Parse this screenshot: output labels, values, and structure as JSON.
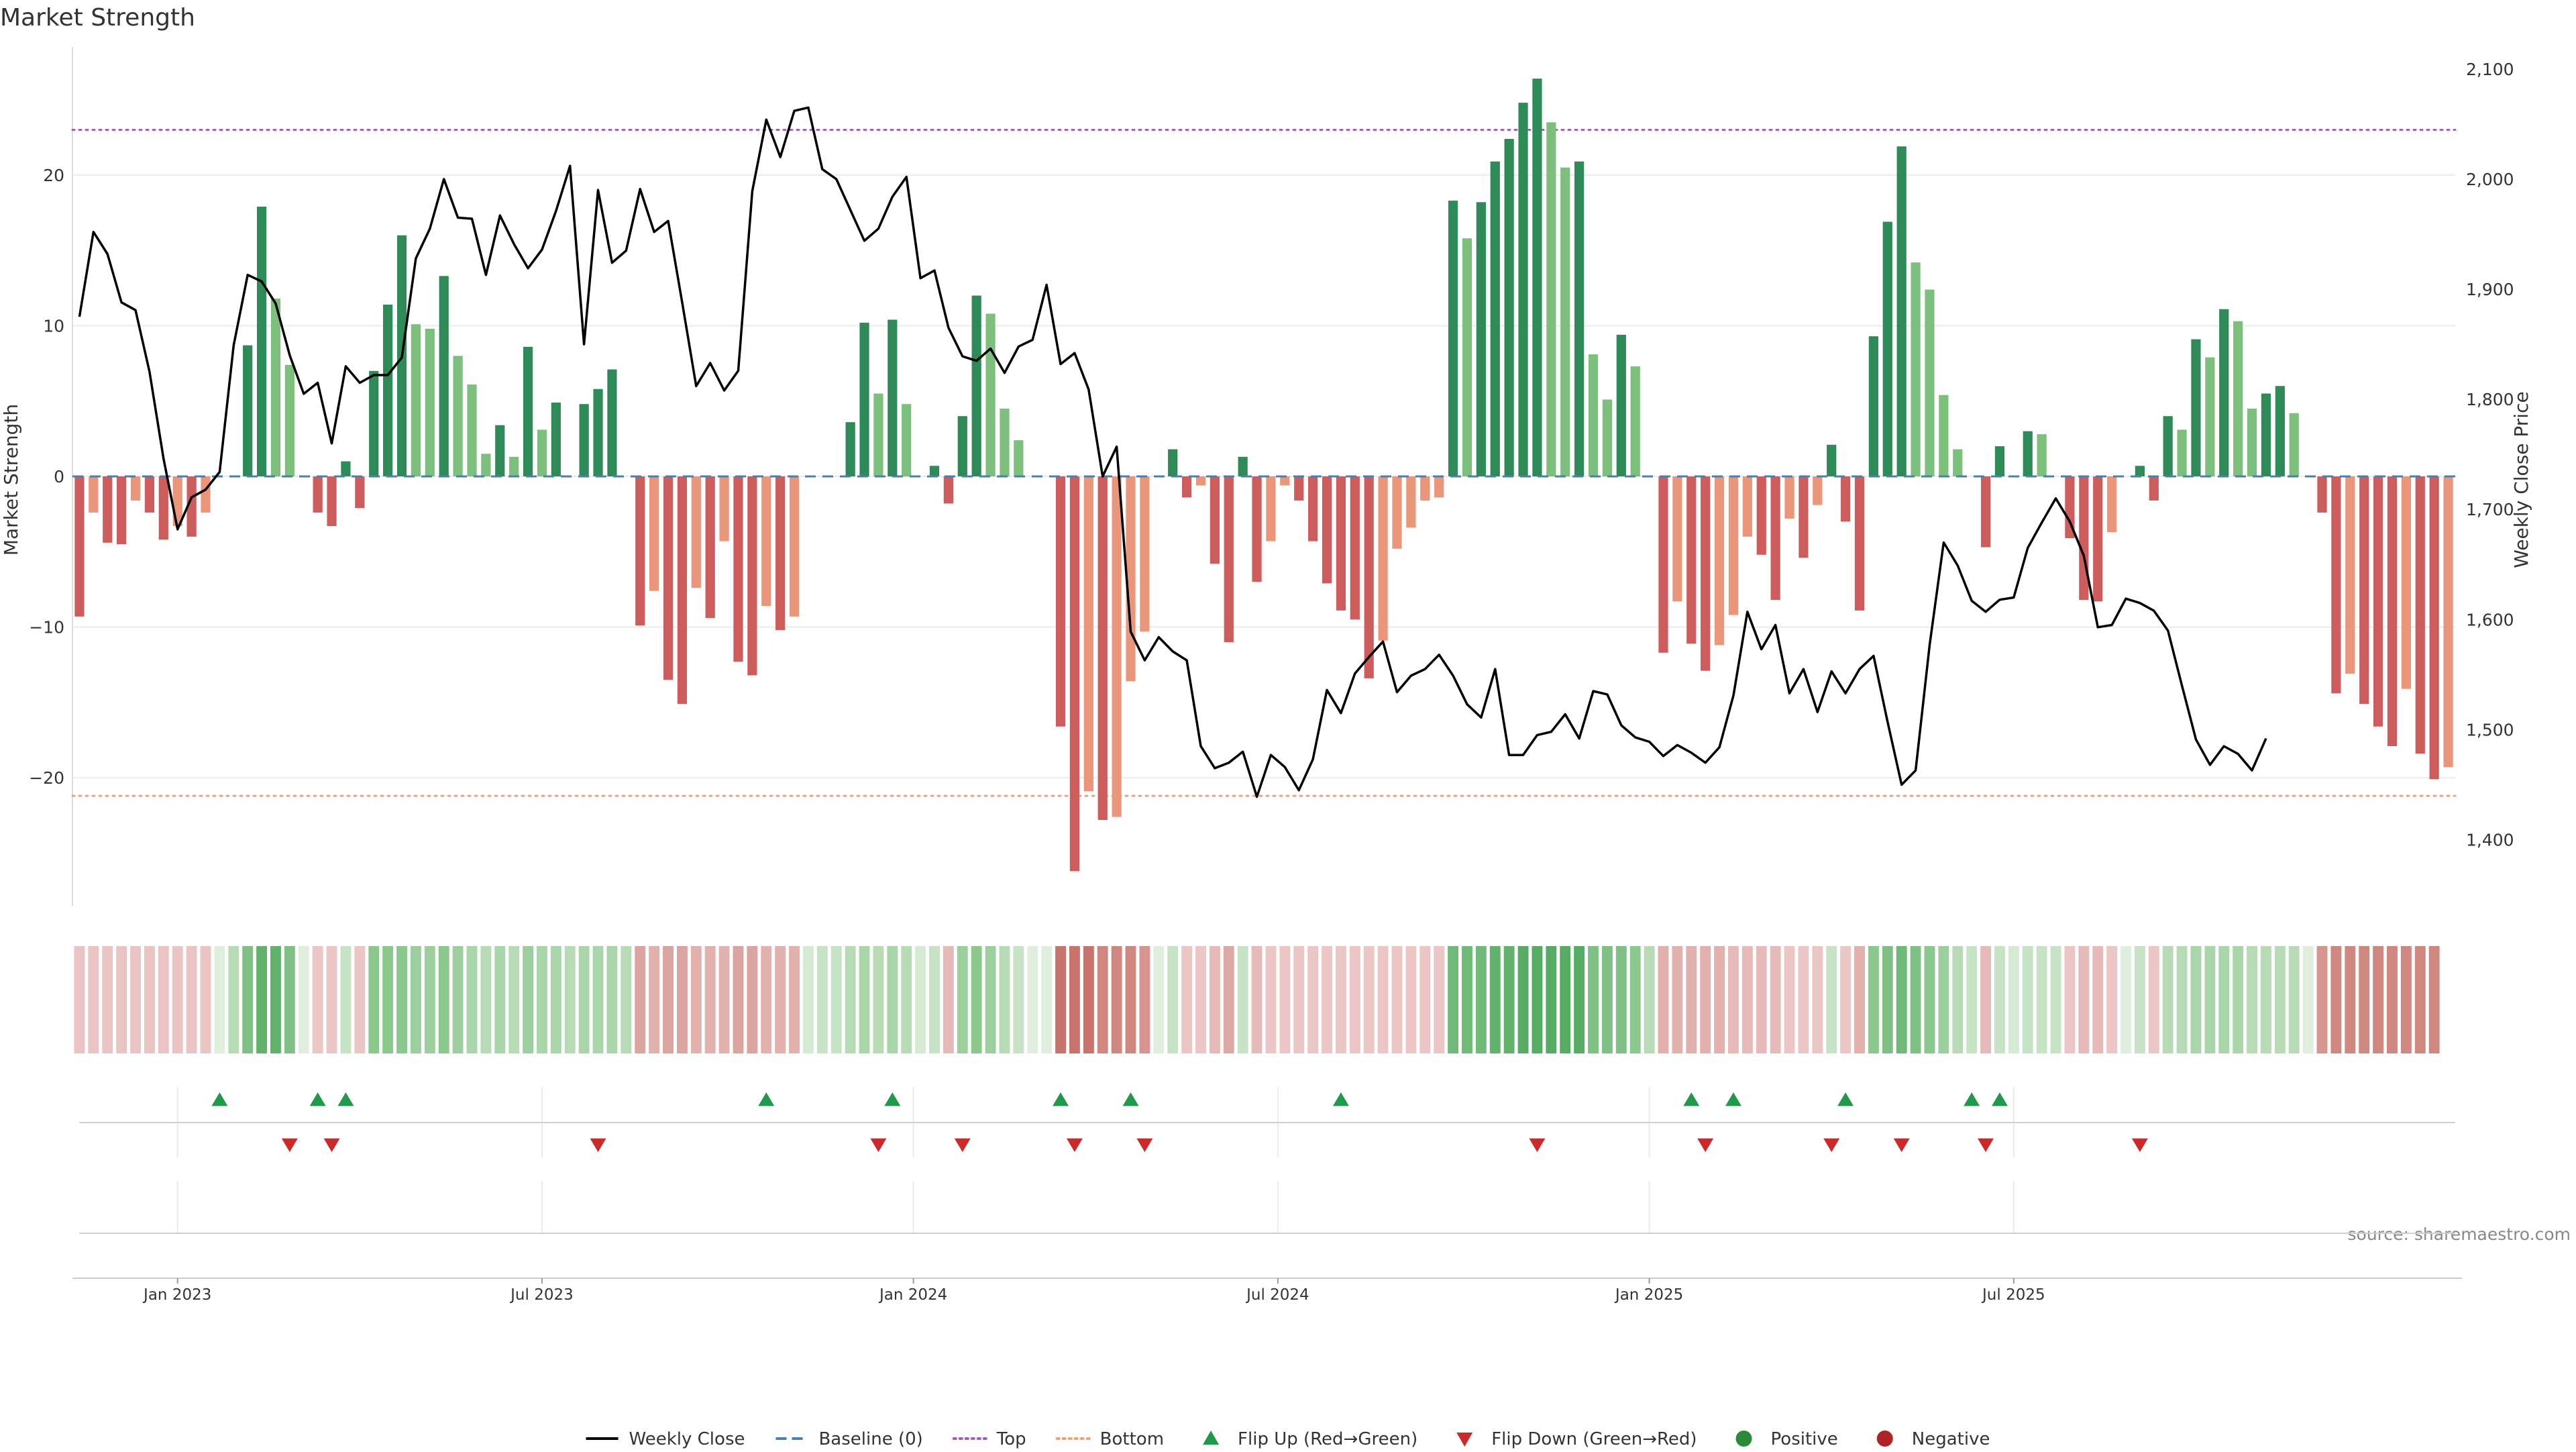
{
  "chart_data": {
    "type": "bar",
    "title": "Market Strength",
    "ylabel": "Market Strength",
    "y2label": "Weekly Close Price",
    "source": "source: sharemaestro.com",
    "ylim": [
      -28.5,
      28.5
    ],
    "y2lim": [
      1340,
      2120
    ],
    "yticks": [
      20,
      10,
      0,
      -10,
      -20
    ],
    "ytick_labels": [
      "20",
      "10",
      "0",
      "−10",
      "−20"
    ],
    "y2ticks": [
      2100,
      2000,
      1900,
      1800,
      1700,
      1600,
      1500,
      1400
    ],
    "y2tick_labels": [
      "2,100",
      "2,000",
      "1,900",
      "1,800",
      "1,700",
      "1,600",
      "1,500",
      "1,400"
    ],
    "xticks": [
      {
        "label": "Jan 2023",
        "week": 7
      },
      {
        "label": "Jul 2023",
        "week": 33
      },
      {
        "label": "Jan 2024",
        "week": 59.5
      },
      {
        "label": "Jul 2024",
        "week": 85.5
      },
      {
        "label": "Jan 2025",
        "week": 112
      },
      {
        "label": "Jul 2025",
        "week": 138
      }
    ],
    "top_level": 23,
    "bottom_level": -21.2,
    "strength": [
      -9.3,
      -2.4,
      -4.4,
      -4.5,
      -1.6,
      -2.4,
      -4.2,
      -3.3,
      -4.0,
      -2.4,
      0,
      0,
      8.7,
      17.9,
      11.8,
      7.4,
      0,
      -2.4,
      -3.3,
      1.0,
      -2.1,
      7.0,
      11.4,
      16.0,
      10.1,
      9.8,
      13.3,
      8.0,
      6.1,
      1.5,
      3.4,
      1.3,
      8.6,
      3.1,
      4.9,
      0,
      4.8,
      5.8,
      7.1,
      0,
      -9.9,
      -7.6,
      -13.5,
      -15.1,
      -7.4,
      -9.4,
      -4.3,
      -12.3,
      -13.2,
      -8.6,
      -10.2,
      -9.3,
      0,
      0,
      0,
      3.6,
      10.2,
      5.5,
      10.4,
      4.8,
      0,
      0.7,
      -1.8,
      4.0,
      12.0,
      10.8,
      4.5,
      2.4,
      0,
      0,
      -16.6,
      -26.2,
      -20.9,
      -22.8,
      -22.6,
      -13.6,
      -10.3,
      0,
      1.8,
      -1.4,
      -0.6,
      -5.8,
      -11.0,
      1.3,
      -7.0,
      -4.3,
      -0.6,
      -1.6,
      -4.3,
      -7.1,
      -8.9,
      -9.5,
      -13.4,
      -10.9,
      -4.8,
      -3.4,
      -1.6,
      -1.4,
      18.3,
      15.8,
      18.2,
      20.9,
      22.4,
      24.8,
      26.4,
      23.5,
      20.5,
      20.9,
      8.1,
      5.1,
      9.4,
      7.3,
      0,
      -11.7,
      -8.3,
      -11.1,
      -12.9,
      -11.2,
      -9.2,
      -4.0,
      -5.2,
      -8.2,
      -2.8,
      -5.4,
      -1.9,
      2.1,
      -3.0,
      -8.9,
      9.3,
      16.9,
      21.9,
      14.2,
      12.4,
      5.4,
      1.8,
      0,
      -4.7,
      2.0,
      0,
      3.0,
      2.8,
      0,
      -4.1,
      -8.2,
      -8.3,
      -3.7,
      0,
      0.7,
      -1.6,
      4.0,
      3.1,
      9.1,
      7.9,
      11.1,
      10.3,
      4.5,
      5.5,
      6.0,
      4.2,
      0,
      -2.4,
      -14.4,
      -13.1,
      -15.1,
      -16.6,
      -17.9,
      -14.1,
      -18.4,
      -20.1,
      -19.3
    ],
    "close": [
      1875,
      1952,
      1932,
      1888,
      1881,
      1825,
      1746,
      1682,
      1711,
      1718,
      1734,
      1849,
      1913,
      1907,
      1887,
      1840,
      1805,
      1815,
      1760,
      1830,
      1815,
      1822,
      1822,
      1838,
      1928,
      1955,
      2000,
      1965,
      1964,
      1913,
      1967,
      1941,
      1919,
      1936,
      1971,
      2012,
      1850,
      1990,
      1924,
      1935,
      1991,
      1952,
      1962,
      1888,
      1812,
      1833,
      1808,
      1826,
      1989,
      2054,
      2020,
      2062,
      2065,
      2009,
      2000,
      1972,
      1944,
      1955,
      1984,
      2002,
      1910,
      1917,
      1865,
      1839,
      1835,
      1846,
      1824,
      1848,
      1854,
      1904,
      1832,
      1842,
      1809,
      1730,
      1757,
      1589,
      1563,
      1584,
      1571,
      1563,
      1485,
      1465,
      1470,
      1480,
      1439,
      1477,
      1466,
      1445,
      1473,
      1536,
      1515,
      1551,
      1566,
      1580,
      1534,
      1549,
      1555,
      1568,
      1549,
      1523,
      1511,
      1555,
      1477,
      1477,
      1495,
      1498,
      1514,
      1492,
      1535,
      1532,
      1504,
      1493,
      1489,
      1476,
      1486,
      1479,
      1470,
      1484,
      1531,
      1607,
      1573,
      1595,
      1533,
      1555,
      1516,
      1553,
      1533,
      1555,
      1567,
      1507,
      1450,
      1463,
      1577,
      1670,
      1649,
      1617,
      1607,
      1618,
      1620,
      1665,
      1688,
      1710,
      1689,
      1658,
      1593,
      1595,
      1619,
      1615,
      1608,
      1590,
      1540,
      1491,
      1468,
      1485,
      1478,
      1463,
      1492
    ],
    "heat_colors": [
      "#eac4c3",
      "#eac4c3",
      "#eac4c3",
      "#eac4c3",
      "#eac4c3",
      "#eac4c3",
      "#eac4c3",
      "#eac4c3",
      "#eac4c3",
      "#eac4c3",
      "#dfeedd",
      "#b6dbb5",
      "#7fc184",
      "#61b36b",
      "#61b36b",
      "#7fc184",
      "#dfeedd",
      "#ecc6c5",
      "#ecc6c5",
      "#c7e3c5",
      "#ecc6c5",
      "#8ac88c",
      "#8ac88c",
      "#8ac88c",
      "#9ccf9d",
      "#9ccf9d",
      "#8ac88c",
      "#9ccf9d",
      "#a8d6a8",
      "#b6dbb5",
      "#a8d6a8",
      "#b6dbb5",
      "#9ccf9d",
      "#a8d6a8",
      "#a8d6a8",
      "#b6dbb5",
      "#a8d6a8",
      "#a8d6a8",
      "#a8d6a8",
      "#b6dbb5",
      "#dba4a1",
      "#e2b0ad",
      "#dba4a1",
      "#dba4a1",
      "#e2b0ad",
      "#e2b0ad",
      "#e2b0ad",
      "#dba4a1",
      "#dba4a1",
      "#e2b0ad",
      "#e2b0ad",
      "#e2b0ad",
      "#d4ead2",
      "#c7e3c5",
      "#c7e3c5",
      "#b6dbb5",
      "#a8d6a8",
      "#b6dbb5",
      "#a8d6a8",
      "#b6dbb5",
      "#d4ead2",
      "#c7e3c5",
      "#e6bab8",
      "#9ccf9d",
      "#8ac88c",
      "#9ccf9d",
      "#b6dbb5",
      "#c7e3c5",
      "#dfeedd",
      "#dfeedd",
      "#c8736c",
      "#c8736c",
      "#c8736c",
      "#d08780",
      "#d08780",
      "#d08780",
      "#d8958f",
      "#dfeedd",
      "#c7e3c5",
      "#ecc6c5",
      "#ecc6c5",
      "#e6bab8",
      "#dda9a6",
      "#c7e3c5",
      "#e6bab8",
      "#ecc6c5",
      "#ecc6c5",
      "#ecc6c5",
      "#ecc6c5",
      "#ecc6c5",
      "#ecc6c5",
      "#ecc6c5",
      "#ecc6c5",
      "#ecc6c5",
      "#ecc6c5",
      "#ecc6c5",
      "#ecc6c5",
      "#ecc6c5",
      "#6eba76",
      "#6eba76",
      "#6eba76",
      "#61b36b",
      "#61b36b",
      "#55ac62",
      "#55ac62",
      "#55ac62",
      "#55ac62",
      "#55ac62",
      "#7fc184",
      "#7fc184",
      "#7fc184",
      "#8ac88c",
      "#b6dbb5",
      "#e2b0ad",
      "#e2b0ad",
      "#e2b0ad",
      "#e2b0ad",
      "#e2b0ad",
      "#e6bab8",
      "#e6bab8",
      "#e6bab8",
      "#e6bab8",
      "#ecc6c5",
      "#ecc6c5",
      "#ecc6c5",
      "#c7e3c5",
      "#ecc6c5",
      "#e2b0ad",
      "#8ac88c",
      "#7fc184",
      "#6eba76",
      "#7fc184",
      "#8ac88c",
      "#9ccf9d",
      "#b6dbb5",
      "#c7e3c5",
      "#e6bab8",
      "#c7e3c5",
      "#d4ead2",
      "#c7e3c5",
      "#c7e3c5",
      "#c7e3c5",
      "#ecc6c5",
      "#e6bab8",
      "#e6bab8",
      "#ecc6c5",
      "#dfeedd",
      "#c7e3c5",
      "#ecc6c5",
      "#b6dbb5",
      "#b6dbb5",
      "#a8d6a8",
      "#a8d6a8",
      "#a8d6a8",
      "#a8d6a8",
      "#b6dbb5",
      "#b6dbb5",
      "#b6dbb5",
      "#b6dbb5",
      "#dfeedd",
      "#d8958f",
      "#d08780",
      "#d08780",
      "#d08780",
      "#d08780",
      "#d08780",
      "#d08780",
      "#d08780",
      "#d08780"
    ],
    "flip_up_weeks": [
      10,
      17,
      19,
      49,
      58,
      70,
      75,
      90,
      115,
      118,
      126,
      135,
      137
    ],
    "flip_down_weeks": [
      15,
      18,
      37,
      57,
      63,
      71,
      76,
      104,
      116,
      125,
      130,
      136,
      147
    ],
    "legend": [
      {
        "key": "weekly-close",
        "label": "Weekly Close",
        "marker": "line",
        "color": "#000000"
      },
      {
        "key": "baseline",
        "label": "Baseline (0)",
        "marker": "dash",
        "color": "#4a7fb0"
      },
      {
        "key": "top",
        "label": "Top",
        "marker": "dot",
        "color": "#a35fb8"
      },
      {
        "key": "bottom",
        "label": "Bottom",
        "marker": "dot",
        "color": "#f0a07a"
      },
      {
        "key": "flip-up",
        "label": "Flip Up (Red→Green)",
        "marker": "triangle-up",
        "color": "#1e9a4a"
      },
      {
        "key": "flip-down",
        "label": "Flip Down (Green→Red)",
        "marker": "triangle-down",
        "color": "#cc2a2a"
      },
      {
        "key": "positive",
        "label": "Positive",
        "marker": "circle",
        "color": "#2a8a3a"
      },
      {
        "key": "negative",
        "label": "Negative",
        "marker": "circle",
        "color": "#b02323"
      }
    ],
    "colors": {
      "pos_strong": "#2e8b57",
      "pos_light": "#7dbf7d",
      "neg_strong": "#cd5c5c",
      "neg_light": "#e9967a",
      "line": "#000000",
      "baseline": "#4a7fb0",
      "top": "#a35fb8",
      "bottom": "#f0a07a",
      "flip_up": "#1e9a4a",
      "flip_down": "#cc2a2a",
      "axis_text": "#333333",
      "grid": "#ebebeb"
    }
  }
}
